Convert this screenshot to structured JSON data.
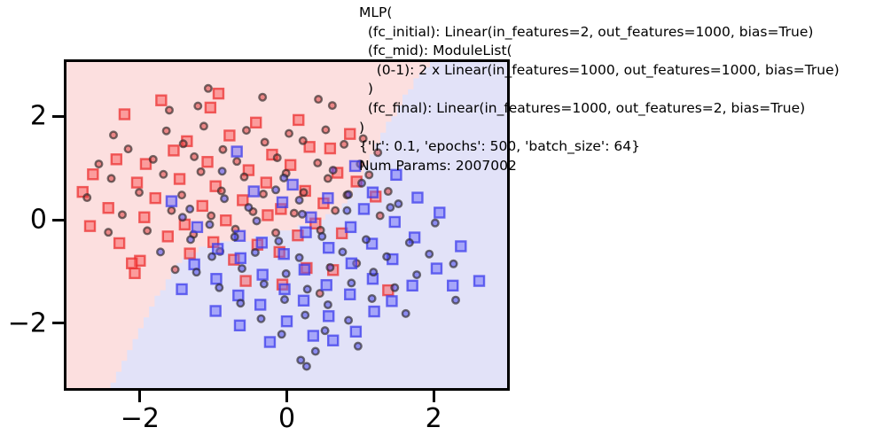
{
  "figure": {
    "annotation": {
      "text": "MLP(\n  (fc_initial): Linear(in_features=2, out_features=1000, bias=True)\n  (fc_mid): ModuleList(\n    (0-1): 2 x Linear(in_features=1000, out_features=1000, bias=True)\n  )\n  (fc_final): Linear(in_features=1000, out_features=2, bias=True)\n)\n{'lr': 0.1, 'epochs': 500, 'batch_size': 64}\nNum Params: 2007002"
    }
  },
  "chart_data": {
    "type": "scatter",
    "title": "",
    "xlabel": "",
    "ylabel": "",
    "xlim": [
      -3.0,
      3.0
    ],
    "ylim": [
      -3.25,
      3.05
    ],
    "xticks": {
      "values": [
        -2,
        0,
        2
      ],
      "labels": [
        "−2",
        "0",
        "2"
      ]
    },
    "yticks": {
      "values": [
        -2,
        0,
        2
      ],
      "labels": [
        "2",
        "0",
        "−2"
      ],
      "order_note": "top-to-bottom"
    },
    "grid": false,
    "legend": null,
    "regions": {
      "red_fill": "#fcdfdf",
      "blue_fill": "#e2e2f8"
    },
    "decision_boundary": {
      "anchors": [
        [
          -2.42,
          -3.3
        ],
        [
          -2.2,
          -2.75
        ],
        [
          -1.98,
          -2.15
        ],
        [
          -1.78,
          -1.6
        ],
        [
          -1.58,
          -1.1
        ],
        [
          -1.35,
          -0.75
        ],
        [
          -1.1,
          -0.58
        ],
        [
          -0.6,
          -0.45
        ],
        [
          -0.05,
          -0.28
        ],
        [
          0.38,
          -0.13
        ],
        [
          0.66,
          0.08
        ],
        [
          0.88,
          0.45
        ],
        [
          1.08,
          1.0
        ],
        [
          1.3,
          1.6
        ],
        [
          1.53,
          2.15
        ],
        [
          1.78,
          2.68
        ],
        [
          2.0,
          3.08
        ]
      ],
      "step_x": 0.075,
      "step_y": 0.105
    },
    "marker_style": {
      "square_size": 11,
      "circle_radius": 3.8,
      "red_square_stroke": "rgba(235,45,45,0.72)",
      "red_square_fill": "rgba(250,90,90,0.5)",
      "blue_square_stroke": "rgba(55,55,235,0.72)",
      "blue_square_fill": "rgba(105,105,250,0.5)",
      "circle_stroke": "rgba(45,40,40,0.65)",
      "red_circle_fill": "rgba(220,60,60,0.55)",
      "blue_circle_fill": "rgba(75,75,235,0.58)"
    },
    "series": [
      {
        "name": "class-red-squares",
        "marker": "square",
        "color": "red",
        "points": [
          [
            -2.21,
            2.04
          ],
          [
            -1.71,
            2.31
          ],
          [
            -0.93,
            2.44
          ],
          [
            -1.04,
            2.17
          ],
          [
            -0.42,
            1.88
          ],
          [
            0.16,
            1.93
          ],
          [
            -1.36,
            1.52
          ],
          [
            -0.78,
            1.63
          ],
          [
            0.31,
            1.41
          ],
          [
            -2.32,
            1.17
          ],
          [
            -1.54,
            1.34
          ],
          [
            -0.2,
            1.26
          ],
          [
            0.59,
            1.38
          ],
          [
            -2.64,
            0.88
          ],
          [
            -1.92,
            1.08
          ],
          [
            -1.08,
            1.12
          ],
          [
            -0.52,
            0.96
          ],
          [
            0.05,
            1.06
          ],
          [
            0.69,
            0.91
          ],
          [
            -2.78,
            0.54
          ],
          [
            -2.04,
            0.72
          ],
          [
            -1.46,
            0.79
          ],
          [
            -0.97,
            0.65
          ],
          [
            -0.28,
            0.72
          ],
          [
            0.25,
            0.56
          ],
          [
            0.95,
            0.74
          ],
          [
            -2.43,
            0.23
          ],
          [
            -1.79,
            0.42
          ],
          [
            -1.15,
            0.27
          ],
          [
            -0.6,
            0.38
          ],
          [
            -0.08,
            0.21
          ],
          [
            0.5,
            0.32
          ],
          [
            1.21,
            0.45
          ],
          [
            -2.68,
            -0.12
          ],
          [
            -1.94,
            0.05
          ],
          [
            -1.39,
            -0.09
          ],
          [
            -0.83,
            -0.01
          ],
          [
            -0.26,
            0.09
          ],
          [
            0.39,
            -0.07
          ],
          [
            -2.28,
            -0.45
          ],
          [
            -1.62,
            -0.32
          ],
          [
            -1.0,
            -0.43
          ],
          [
            -0.4,
            -0.48
          ],
          [
            0.15,
            -0.3
          ],
          [
            0.75,
            -0.26
          ],
          [
            -2.0,
            -0.79
          ],
          [
            -1.32,
            -0.65
          ],
          [
            -0.72,
            -0.77
          ],
          [
            -0.1,
            -0.62
          ],
          [
            -2.11,
            -0.84
          ],
          [
            -2.07,
            -1.03
          ],
          [
            -0.56,
            -1.18
          ],
          [
            0.27,
            -0.93
          ],
          [
            0.86,
            1.66
          ],
          [
            0.63,
            -0.97
          ],
          [
            1.38,
            -1.36
          ],
          [
            -0.06,
            -1.25
          ]
        ]
      },
      {
        "name": "class-red-circles",
        "marker": "circle",
        "color": "red",
        "points": [
          [
            -1.07,
            2.54
          ],
          [
            -1.6,
            2.12
          ],
          [
            -1.21,
            2.2
          ],
          [
            -0.33,
            2.37
          ],
          [
            0.62,
            2.21
          ],
          [
            0.43,
            2.33
          ],
          [
            -2.36,
            1.64
          ],
          [
            -1.64,
            1.72
          ],
          [
            -1.13,
            1.81
          ],
          [
            -0.55,
            1.73
          ],
          [
            0.03,
            1.67
          ],
          [
            0.53,
            1.74
          ],
          [
            1.04,
            1.57
          ],
          [
            -2.16,
            1.37
          ],
          [
            -1.41,
            1.47
          ],
          [
            -0.87,
            1.36
          ],
          [
            -0.3,
            1.5
          ],
          [
            0.22,
            1.53
          ],
          [
            0.78,
            1.46
          ],
          [
            1.24,
            1.3
          ],
          [
            -2.56,
            1.08
          ],
          [
            -1.82,
            1.17
          ],
          [
            -1.26,
            1.22
          ],
          [
            -0.68,
            1.13
          ],
          [
            -0.13,
            1.2
          ],
          [
            0.42,
            1.1
          ],
          [
            1.0,
            1.08
          ],
          [
            -2.39,
            0.8
          ],
          [
            -1.68,
            0.88
          ],
          [
            -1.17,
            0.93
          ],
          [
            -0.58,
            0.83
          ],
          [
            -0.01,
            0.9
          ],
          [
            0.56,
            0.8
          ],
          [
            1.12,
            0.87
          ],
          [
            -2.72,
            0.43
          ],
          [
            -2.01,
            0.53
          ],
          [
            -1.43,
            0.48
          ],
          [
            -0.89,
            0.56
          ],
          [
            -0.32,
            0.5
          ],
          [
            0.23,
            0.53
          ],
          [
            0.82,
            0.48
          ],
          [
            1.38,
            0.55
          ],
          [
            -2.24,
            0.1
          ],
          [
            -1.57,
            0.18
          ],
          [
            -1.03,
            0.08
          ],
          [
            -0.46,
            0.16
          ],
          [
            0.1,
            0.13
          ],
          [
            0.66,
            0.18
          ],
          [
            1.27,
            0.08
          ],
          [
            -1.9,
            -0.21
          ],
          [
            -2.43,
            -0.24
          ],
          [
            -1.27,
            -0.28
          ],
          [
            -0.7,
            -0.18
          ],
          [
            -0.15,
            -0.25
          ],
          [
            0.46,
            -0.2
          ],
          [
            -0.91,
            -0.61
          ],
          [
            0.95,
            -0.84
          ],
          [
            0.45,
            -1.42
          ],
          [
            -1.52,
            -0.96
          ]
        ]
      },
      {
        "name": "class-blue-squares",
        "marker": "square",
        "color": "blue",
        "points": [
          [
            -0.68,
            1.32
          ],
          [
            -1.57,
            0.36
          ],
          [
            1.49,
            0.87
          ],
          [
            0.93,
            1.04
          ],
          [
            -0.45,
            0.55
          ],
          [
            0.08,
            0.68
          ],
          [
            -1.22,
            -0.14
          ],
          [
            -0.64,
            -0.31
          ],
          [
            -0.06,
            0.34
          ],
          [
            0.56,
            0.42
          ],
          [
            1.17,
            0.53
          ],
          [
            1.78,
            0.43
          ],
          [
            -0.94,
            -0.56
          ],
          [
            -0.34,
            -0.44
          ],
          [
            0.26,
            -0.24
          ],
          [
            0.87,
            -0.14
          ],
          [
            1.47,
            -0.04
          ],
          [
            2.08,
            0.14
          ],
          [
            -1.26,
            -0.86
          ],
          [
            -0.63,
            -0.74
          ],
          [
            -0.04,
            -0.66
          ],
          [
            0.57,
            -0.54
          ],
          [
            1.16,
            -0.46
          ],
          [
            1.74,
            -0.34
          ],
          [
            2.37,
            -0.51
          ],
          [
            -0.96,
            -1.14
          ],
          [
            -0.33,
            -1.06
          ],
          [
            0.24,
            -0.96
          ],
          [
            0.88,
            -0.84
          ],
          [
            1.44,
            -0.76
          ],
          [
            2.04,
            -0.94
          ],
          [
            -1.43,
            -1.34
          ],
          [
            -0.66,
            -1.46
          ],
          [
            -0.03,
            -1.34
          ],
          [
            0.54,
            -1.26
          ],
          [
            1.17,
            -1.14
          ],
          [
            1.71,
            -1.27
          ],
          [
            -0.97,
            -1.76
          ],
          [
            -0.36,
            -1.64
          ],
          [
            0.23,
            -1.56
          ],
          [
            0.86,
            -1.44
          ],
          [
            1.43,
            -1.57
          ],
          [
            -0.64,
            -2.04
          ],
          [
            0.0,
            -1.96
          ],
          [
            0.57,
            -1.86
          ],
          [
            1.19,
            -1.77
          ],
          [
            -0.23,
            -2.36
          ],
          [
            0.36,
            -2.24
          ],
          [
            0.94,
            -2.16
          ],
          [
            0.63,
            -2.33
          ],
          [
            2.26,
            -1.27
          ],
          [
            2.62,
            -1.18
          ],
          [
            0.33,
            0.05
          ],
          [
            1.05,
            0.21
          ]
        ]
      },
      {
        "name": "class-blue-circles",
        "marker": "circle",
        "color": "blue",
        "points": [
          [
            -0.88,
            0.94
          ],
          [
            -0.04,
            0.81
          ],
          [
            0.63,
            0.96
          ],
          [
            -1.32,
            0.21
          ],
          [
            -0.52,
            0.24
          ],
          [
            0.17,
            0.38
          ],
          [
            0.84,
            0.49
          ],
          [
            1.52,
            0.31
          ],
          [
            -1.05,
            -0.09
          ],
          [
            -0.41,
            -0.02
          ],
          [
            0.21,
            0.11
          ],
          [
            0.82,
            0.18
          ],
          [
            1.41,
            0.24
          ],
          [
            2.02,
            -0.06
          ],
          [
            -1.31,
            -0.38
          ],
          [
            -0.71,
            -0.33
          ],
          [
            -0.11,
            -0.41
          ],
          [
            0.48,
            -0.32
          ],
          [
            1.08,
            -0.38
          ],
          [
            1.67,
            -0.44
          ],
          [
            2.27,
            -0.85
          ],
          [
            -1.02,
            -0.71
          ],
          [
            -0.43,
            -0.63
          ],
          [
            0.17,
            -0.73
          ],
          [
            0.76,
            -0.62
          ],
          [
            1.36,
            -0.71
          ],
          [
            1.94,
            -0.66
          ],
          [
            -1.23,
            -1.01
          ],
          [
            -0.61,
            -0.94
          ],
          [
            -0.01,
            -1.04
          ],
          [
            0.59,
            -0.92
          ],
          [
            1.18,
            -1.01
          ],
          [
            1.77,
            -1.06
          ],
          [
            -0.92,
            -1.31
          ],
          [
            -0.31,
            -1.24
          ],
          [
            0.28,
            -1.34
          ],
          [
            0.88,
            -1.22
          ],
          [
            1.47,
            -1.31
          ],
          [
            -0.63,
            -1.61
          ],
          [
            -0.03,
            -1.54
          ],
          [
            0.56,
            -1.64
          ],
          [
            1.16,
            -1.52
          ],
          [
            -0.35,
            -1.91
          ],
          [
            0.25,
            -1.84
          ],
          [
            0.84,
            -1.94
          ],
          [
            -0.07,
            -2.21
          ],
          [
            0.52,
            -2.14
          ],
          [
            0.19,
            -2.71
          ],
          [
            0.39,
            -2.54
          ],
          [
            0.27,
            -2.83
          ],
          [
            -0.85,
            0.41
          ],
          [
            1.02,
            0.71
          ],
          [
            -0.15,
            0.58
          ],
          [
            0.97,
            -2.44
          ],
          [
            1.62,
            -1.81
          ],
          [
            2.3,
            -1.55
          ],
          [
            -1.72,
            -0.62
          ],
          [
            -1.42,
            0.05
          ]
        ]
      }
    ]
  }
}
